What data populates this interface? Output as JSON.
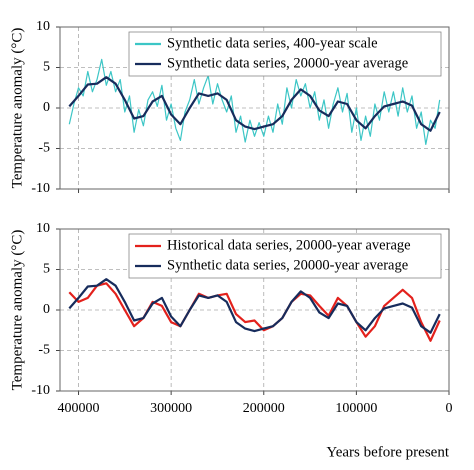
{
  "chart_data": [
    {
      "type": "line",
      "ylabel": "Temperature anomaly (°C)",
      "xlim": [
        420000,
        0
      ],
      "xticks": [
        400000,
        300000,
        200000,
        100000,
        0
      ],
      "xtick_labels": false,
      "ylim": [
        -10,
        10
      ],
      "yticks": [
        -10,
        -5,
        0,
        5,
        10
      ],
      "grid": true,
      "legend": "upper right",
      "series": [
        {
          "name": "Synthetic data series, 400-year scale",
          "color": "#3cc6c6",
          "x": [
            410000,
            405000,
            400000,
            395000,
            390000,
            385000,
            380000,
            375000,
            370000,
            365000,
            360000,
            355000,
            350000,
            345000,
            340000,
            335000,
            330000,
            325000,
            320000,
            315000,
            310000,
            305000,
            300000,
            295000,
            290000,
            285000,
            280000,
            275000,
            270000,
            265000,
            260000,
            255000,
            250000,
            245000,
            240000,
            235000,
            230000,
            225000,
            220000,
            215000,
            210000,
            205000,
            200000,
            195000,
            190000,
            185000,
            180000,
            175000,
            170000,
            165000,
            160000,
            155000,
            150000,
            145000,
            140000,
            135000,
            130000,
            125000,
            120000,
            115000,
            110000,
            105000,
            100000,
            95000,
            90000,
            85000,
            80000,
            75000,
            70000,
            65000,
            60000,
            55000,
            50000,
            45000,
            40000,
            35000,
            30000,
            25000,
            20000,
            15000,
            10000
          ],
          "values": [
            -2.0,
            0.5,
            2.5,
            1.5,
            4.5,
            2.0,
            3.5,
            6.0,
            2.8,
            4.5,
            2.0,
            3.5,
            -0.5,
            1.5,
            -3.0,
            -0.2,
            -2.2,
            1.0,
            2.0,
            0.2,
            2.8,
            -1.5,
            0.5,
            -2.5,
            -4.0,
            -0.5,
            1.0,
            3.5,
            0.5,
            2.5,
            4.0,
            0.5,
            3.0,
            1.0,
            -0.5,
            1.5,
            -3.0,
            -1.0,
            -4.2,
            -1.5,
            -3.5,
            -1.8,
            -3.5,
            -1.0,
            -3.0,
            0.5,
            -2.0,
            2.5,
            0.0,
            3.5,
            1.5,
            3.0,
            0.0,
            2.0,
            -1.5,
            1.0,
            -2.5,
            0.5,
            2.5,
            -0.5,
            1.8,
            -3.0,
            0.0,
            -4.0,
            -1.0,
            -3.5,
            0.5,
            -1.5,
            2.0,
            -0.5,
            2.0,
            -1.0,
            2.5,
            -0.5,
            1.5,
            -2.5,
            -0.5,
            -4.5,
            -1.5,
            -2.5,
            1.0
          ]
        },
        {
          "name": "Synthetic data series, 20000-year average",
          "color": "#172c5c",
          "x": [
            410000,
            400000,
            390000,
            380000,
            370000,
            360000,
            350000,
            340000,
            330000,
            320000,
            310000,
            300000,
            290000,
            280000,
            270000,
            260000,
            250000,
            240000,
            230000,
            220000,
            210000,
            200000,
            190000,
            180000,
            170000,
            160000,
            150000,
            140000,
            130000,
            120000,
            110000,
            100000,
            90000,
            80000,
            70000,
            60000,
            50000,
            40000,
            30000,
            20000,
            10000
          ],
          "values": [
            0.2,
            1.5,
            2.9,
            3.0,
            3.8,
            3.0,
            1.0,
            -1.3,
            -1.0,
            0.8,
            1.5,
            -0.8,
            -2.0,
            0.0,
            1.8,
            1.5,
            1.8,
            1.0,
            -1.5,
            -2.3,
            -2.6,
            -2.3,
            -2.0,
            -1.0,
            1.0,
            2.3,
            1.5,
            -0.3,
            -1.0,
            0.8,
            0.5,
            -1.5,
            -2.5,
            -1.0,
            0.2,
            0.5,
            0.8,
            0.3,
            -2.0,
            -2.8,
            -0.5
          ]
        }
      ]
    },
    {
      "type": "line",
      "ylabel": "Temperature anomaly (°C)",
      "xlabel": "Years before present",
      "xlim": [
        420000,
        0
      ],
      "xticks": [
        400000,
        300000,
        200000,
        100000,
        0
      ],
      "xtick_labels": true,
      "ylim": [
        -10,
        10
      ],
      "yticks": [
        -10,
        -5,
        0,
        5,
        10
      ],
      "grid": true,
      "legend": "upper right",
      "series": [
        {
          "name": "Historical data series, 20000-year average",
          "color": "#e3211c",
          "x": [
            410000,
            400000,
            390000,
            380000,
            370000,
            360000,
            350000,
            340000,
            330000,
            320000,
            310000,
            300000,
            290000,
            280000,
            270000,
            260000,
            250000,
            240000,
            230000,
            220000,
            210000,
            200000,
            190000,
            180000,
            170000,
            160000,
            150000,
            140000,
            130000,
            120000,
            110000,
            100000,
            90000,
            80000,
            70000,
            60000,
            50000,
            40000,
            30000,
            20000,
            10000
          ],
          "values": [
            2.2,
            1.0,
            1.5,
            3.0,
            3.3,
            2.0,
            0.0,
            -2.0,
            -1.0,
            1.0,
            0.5,
            -1.5,
            -2.0,
            0.0,
            2.0,
            1.5,
            1.8,
            2.0,
            -0.5,
            -1.5,
            -1.3,
            -2.5,
            -2.0,
            -1.0,
            1.0,
            2.0,
            1.8,
            0.5,
            -0.7,
            1.5,
            0.5,
            -1.5,
            -3.3,
            -2.0,
            0.5,
            1.5,
            2.5,
            1.5,
            -1.5,
            -3.8,
            -1.3
          ]
        },
        {
          "name": "Synthetic data series, 20000-year average",
          "color": "#172c5c",
          "x": [
            410000,
            400000,
            390000,
            380000,
            370000,
            360000,
            350000,
            340000,
            330000,
            320000,
            310000,
            300000,
            290000,
            280000,
            270000,
            260000,
            250000,
            240000,
            230000,
            220000,
            210000,
            200000,
            190000,
            180000,
            170000,
            160000,
            150000,
            140000,
            130000,
            120000,
            110000,
            100000,
            90000,
            80000,
            70000,
            60000,
            50000,
            40000,
            30000,
            20000,
            10000
          ],
          "values": [
            0.2,
            1.5,
            2.9,
            3.0,
            3.8,
            3.0,
            1.0,
            -1.3,
            -1.0,
            0.8,
            1.5,
            -0.8,
            -2.0,
            0.0,
            1.8,
            1.5,
            1.8,
            1.0,
            -1.5,
            -2.3,
            -2.6,
            -2.3,
            -2.0,
            -1.0,
            1.0,
            2.3,
            1.5,
            -0.3,
            -1.0,
            0.8,
            0.5,
            -1.5,
            -2.5,
            -1.0,
            0.2,
            0.5,
            0.8,
            0.3,
            -2.0,
            -2.8,
            -0.5
          ]
        }
      ]
    }
  ]
}
